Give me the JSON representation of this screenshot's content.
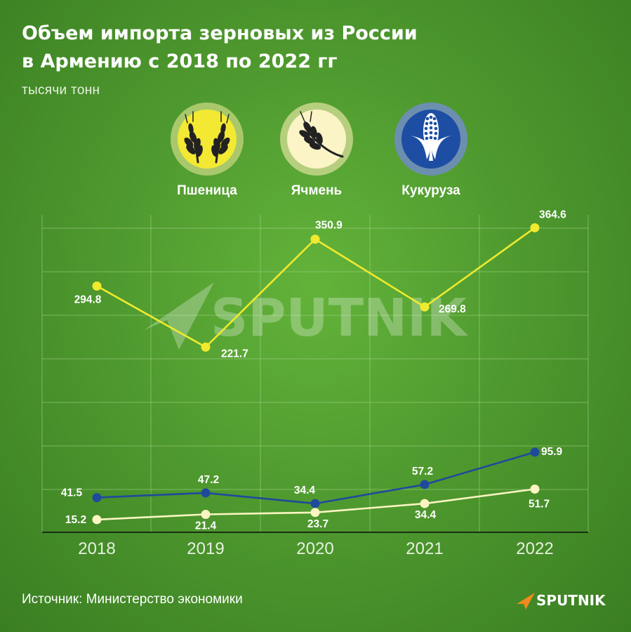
{
  "title_line1": "Объем импорта зерновых из России",
  "title_line2": "в Армению с 2018 по 2022 гг",
  "subtitle": "тысячи тонн",
  "source": "Источник: Министерство экономики",
  "brand": "SPUTNIK",
  "watermark": "SPUTNIK",
  "legend": [
    {
      "label": "Пшеница",
      "icon": "wheat-icon",
      "color": "#f2e93a"
    },
    {
      "label": "Ячмень",
      "icon": "barley-icon",
      "color": "#fbf4c0"
    },
    {
      "label": "Кукуруза",
      "icon": "corn-icon",
      "color": "#1e4ea0"
    }
  ],
  "chart_data": {
    "type": "line",
    "categories": [
      "2018",
      "2019",
      "2020",
      "2021",
      "2022"
    ],
    "series": [
      {
        "name": "Пшеница",
        "color": "#f0ea2e",
        "values": [
          294.8,
          221.7,
          350.9,
          269.8,
          364.6
        ],
        "labels": [
          "294.8",
          "221.7",
          "350.9",
          "269.8",
          "364.6"
        ]
      },
      {
        "name": "Кукуруза",
        "color": "#1f4a9c",
        "values": [
          41.5,
          47.2,
          34.4,
          57.2,
          95.9
        ],
        "labels": [
          "41.5",
          "47.2",
          "34.4",
          "57.2",
          "95.9"
        ]
      },
      {
        "name": "Ячмень",
        "color": "#fbf5c2",
        "values": [
          15.2,
          21.4,
          23.7,
          34.4,
          51.7
        ],
        "labels": [
          "15.2",
          "21.4",
          "23.7",
          "34.4",
          "51.7"
        ]
      }
    ],
    "grid": true,
    "legend_position": "top"
  }
}
